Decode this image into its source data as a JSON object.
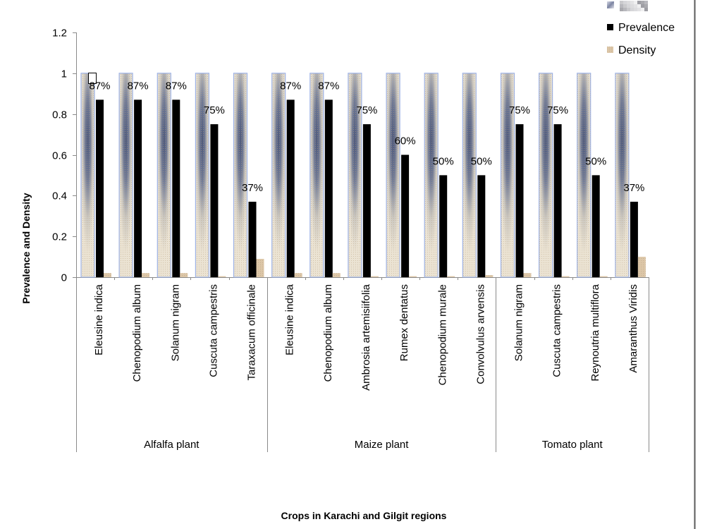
{
  "chart_data": {
    "type": "bar",
    "xlabel": "Crops in Karachi and Gilgit regions",
    "ylabel": "Prevalence and Density",
    "ylim": [
      0,
      1.2
    ],
    "yticks": [
      0,
      0.2,
      0.4,
      0.6,
      0.8,
      1,
      1.2
    ],
    "ytick_labels": [
      "0",
      "0.2",
      "0.4",
      "0.6",
      "0.8",
      "1",
      "1.2"
    ],
    "grid": false,
    "legend": "top-right",
    "categories": [
      "Eleusine indica",
      "Chenopodium album",
      "Solanum nigram",
      "Cuscuta campestris",
      "Taraxacum officinale",
      "Eleusine indica",
      "Chenopodium album",
      "Ambrosia artemisiifolia",
      "Rumex dentatus",
      "Chenopodium murale",
      "Convolvulus arvensis",
      "Solanum nigram",
      "Cuscuta campestris",
      "Reynoutria multiflora",
      "Amaranthus Viridis"
    ],
    "groups": [
      {
        "label": "Alfalfa plant",
        "count": 5
      },
      {
        "label": "Maize plant",
        "count": 6
      },
      {
        "label": "Tomato plant",
        "count": 4
      }
    ],
    "series": [
      {
        "color": "#5c6786",
        "values": [
          1,
          1,
          1,
          1,
          1,
          1,
          1,
          1,
          1,
          1,
          1,
          1,
          1,
          1,
          1
        ]
      },
      {
        "name": "Prevalence",
        "color": "#000000",
        "values": [
          0.87,
          0.87,
          0.87,
          0.75,
          0.37,
          0.87,
          0.87,
          0.75,
          0.6,
          0.5,
          0.5,
          0.75,
          0.75,
          0.5,
          0.37
        ],
        "data_labels": [
          "87%",
          "87%",
          "87%",
          "75%",
          "37%",
          "87%",
          "87%",
          "75%",
          "60%",
          "50%",
          "50%",
          "75%",
          "75%",
          "50%",
          "37%"
        ]
      },
      {
        "name": "Density",
        "color": "#dcc6a7",
        "values": [
          0.02,
          0.02,
          0.02,
          0.005,
          0.09,
          0.02,
          0.02,
          0.005,
          0.005,
          0.005,
          0.01,
          0.02,
          0.005,
          0.005,
          0.1
        ]
      }
    ]
  }
}
